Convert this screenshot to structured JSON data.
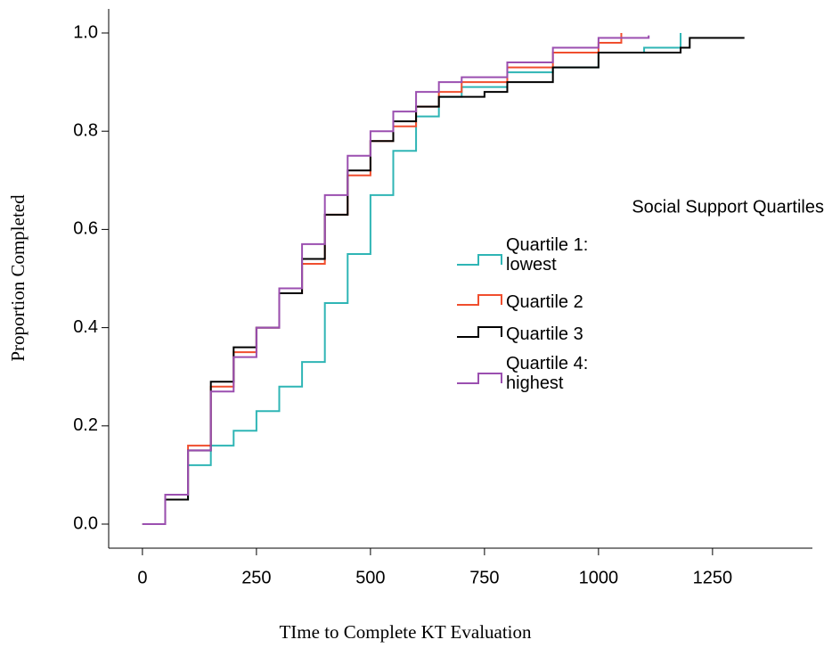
{
  "chart_data": {
    "type": "line",
    "step": true,
    "x_label": "TIme to Complete KT Evaluation",
    "y_label": "Proportion Completed",
    "legend_title": "Social Support Quartiles",
    "legend_position": "right",
    "xlim": [
      -74,
      1469
    ],
    "ylim": [
      -0.049,
      1.049
    ],
    "xticks": [
      0,
      250,
      500,
      750,
      1000,
      1250
    ],
    "yticks": [
      {
        "value": 0,
        "label": "0.0"
      },
      0.2,
      0.4,
      0.6,
      0.8,
      {
        "value": 1,
        "label": "1.0"
      }
    ],
    "series": [
      {
        "name": "Quartile 1: lowest",
        "color": "#2fb5b5",
        "x": [
          0,
          50,
          100,
          150,
          200,
          250,
          300,
          350,
          400,
          450,
          500,
          550,
          600,
          650,
          700,
          800,
          900,
          1000,
          1100,
          1180
        ],
        "values": [
          0,
          0.05,
          0.12,
          0.16,
          0.19,
          0.23,
          0.28,
          0.33,
          0.45,
          0.55,
          0.67,
          0.76,
          0.83,
          0.87,
          0.89,
          0.92,
          0.93,
          0.96,
          0.97,
          1.0
        ]
      },
      {
        "name": "Quartile 2",
        "color": "#f04e2e",
        "x": [
          0,
          50,
          100,
          150,
          200,
          250,
          300,
          350,
          400,
          450,
          500,
          550,
          600,
          650,
          700,
          800,
          900,
          1000,
          1050
        ],
        "values": [
          0,
          0.06,
          0.16,
          0.28,
          0.35,
          0.4,
          0.47,
          0.53,
          0.63,
          0.71,
          0.78,
          0.81,
          0.85,
          0.88,
          0.9,
          0.93,
          0.96,
          0.98,
          1.0
        ]
      },
      {
        "name": "Quartile 3",
        "color": "#000000",
        "x": [
          0,
          50,
          100,
          150,
          200,
          250,
          300,
          350,
          400,
          450,
          500,
          550,
          600,
          650,
          750,
          800,
          900,
          1000,
          1180,
          1200,
          1320
        ],
        "values": [
          0,
          0.05,
          0.15,
          0.29,
          0.36,
          0.4,
          0.47,
          0.54,
          0.63,
          0.72,
          0.78,
          0.82,
          0.85,
          0.87,
          0.88,
          0.9,
          0.93,
          0.96,
          0.97,
          0.99,
          0.99
        ]
      },
      {
        "name": "Quartile 4: highest",
        "color": "#9b4fb0",
        "x": [
          0,
          50,
          100,
          150,
          200,
          250,
          300,
          350,
          400,
          450,
          500,
          550,
          600,
          650,
          700,
          800,
          900,
          1000,
          1110
        ],
        "values": [
          0,
          0.06,
          0.15,
          0.27,
          0.34,
          0.4,
          0.48,
          0.57,
          0.67,
          0.75,
          0.8,
          0.84,
          0.88,
          0.9,
          0.91,
          0.94,
          0.97,
          0.99,
          0.995
        ]
      }
    ]
  }
}
